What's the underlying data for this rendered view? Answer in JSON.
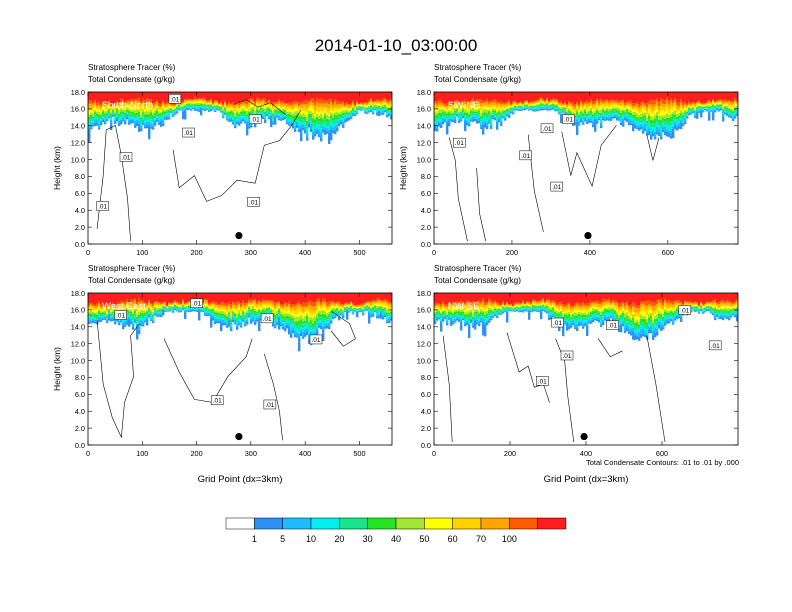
{
  "figure": {
    "title": "2014-01-10_03:00:00",
    "contour_note": "Total Condensate Contours: .01 to .01 by .000"
  },
  "colorbar": {
    "colors": [
      "#ffffff",
      "#2e8ff5",
      "#1ebcff",
      "#00f0f0",
      "#19e68c",
      "#24e424",
      "#a0e632",
      "#ffff00",
      "#ffd200",
      "#ffa500",
      "#ff5a00",
      "#ff1e1e"
    ],
    "labels": [
      "1",
      "5",
      "10",
      "20",
      "30",
      "40",
      "50",
      "60",
      "70",
      "100"
    ]
  },
  "chart_data": [
    {
      "type": "heatmap",
      "panel_label": "South-North",
      "header_line1": "Stratosphere Tracer   (%)",
      "header_line2": "Total Condensate   (g/kg)",
      "ylabel": "Height (km)",
      "xlabel": "",
      "xlim": [
        0,
        560
      ],
      "ylim": [
        0,
        18
      ],
      "x_ticks": [
        "0",
        "100",
        "200",
        "300",
        "400",
        "500"
      ],
      "y_ticks": [
        "0.0",
        "2.0",
        "4.0",
        "6.0",
        "8.0",
        "10.0",
        "12.0",
        "14.0",
        "16.0",
        "18.0"
      ],
      "contour_labels": [
        {
          "x": 160,
          "y": 17.2,
          "text": ".01"
        },
        {
          "x": 308,
          "y": 14.8,
          "text": ".01"
        },
        {
          "x": 185,
          "y": 13.2,
          "text": ".01"
        },
        {
          "x": 70,
          "y": 10.3,
          "text": ".01"
        },
        {
          "x": 27,
          "y": 4.5,
          "text": ".01"
        },
        {
          "x": 305,
          "y": 5.0,
          "text": ".01"
        }
      ],
      "marker": {
        "x": 278,
        "y": 1.0
      }
    },
    {
      "type": "heatmap",
      "panel_label": "SW-NE",
      "header_line1": "Stratosphere Tracer   (%)",
      "header_line2": "Total Condensate   (g/kg)",
      "ylabel": "Height (km)",
      "xlabel": "",
      "xlim": [
        0,
        780
      ],
      "ylim": [
        0,
        18
      ],
      "x_ticks": [
        "0",
        "200",
        "400",
        "600"
      ],
      "y_ticks": [
        "0.0",
        "2.0",
        "4.0",
        "6.0",
        "8.0",
        "10.0",
        "12.0",
        "14.0",
        "16.0",
        "18.0"
      ],
      "contour_labels": [
        {
          "x": 65,
          "y": 12.0,
          "text": ".01"
        },
        {
          "x": 345,
          "y": 14.8,
          "text": ".01"
        },
        {
          "x": 290,
          "y": 13.7,
          "text": ".01"
        },
        {
          "x": 235,
          "y": 10.5,
          "text": ".01"
        },
        {
          "x": 315,
          "y": 6.8,
          "text": ".01"
        }
      ],
      "marker": {
        "x": 395,
        "y": 1.0
      }
    },
    {
      "type": "heatmap",
      "panel_label": "West-East",
      "header_line1": "Stratosphere Tracer   (%)",
      "header_line2": "Total Condensate   (g/kg)",
      "ylabel": "Height (km)",
      "xlabel": "Grid Point (dx=3km)",
      "xlim": [
        0,
        560
      ],
      "ylim": [
        0,
        18
      ],
      "x_ticks": [
        "0",
        "100",
        "200",
        "300",
        "400",
        "500"
      ],
      "y_ticks": [
        "0.0",
        "2.0",
        "4.0",
        "6.0",
        "8.0",
        "10.0",
        "12.0",
        "14.0",
        "16.0",
        "18.0"
      ],
      "contour_labels": [
        {
          "x": 200,
          "y": 16.8,
          "text": ".01"
        },
        {
          "x": 60,
          "y": 15.4,
          "text": ".01"
        },
        {
          "x": 330,
          "y": 15.0,
          "text": ".01"
        },
        {
          "x": 420,
          "y": 12.5,
          "text": ".01"
        },
        {
          "x": 238,
          "y": 5.3,
          "text": ".01"
        },
        {
          "x": 335,
          "y": 4.8,
          "text": ".01"
        }
      ],
      "marker": {
        "x": 278,
        "y": 1.0
      }
    },
    {
      "type": "heatmap",
      "panel_label": "NW-SE",
      "header_line1": "Stratosphere Tracer   (%)",
      "header_line2": "Total Condensate   (g/kg)",
      "ylabel": "",
      "xlabel": "Grid Point (dx=3km)",
      "xlim": [
        0,
        800
      ],
      "ylim": [
        0,
        18
      ],
      "x_ticks": [
        "0",
        "200",
        "400",
        "600"
      ],
      "y_ticks": [
        "0.0",
        "2.0",
        "4.0",
        "6.0",
        "8.0",
        "10.0",
        "12.0",
        "14.0",
        "16.0",
        "18.0"
      ],
      "contour_labels": [
        {
          "x": 660,
          "y": 16.0,
          "text": ".01"
        },
        {
          "x": 325,
          "y": 14.5,
          "text": ".01"
        },
        {
          "x": 470,
          "y": 14.2,
          "text": ".01"
        },
        {
          "x": 350,
          "y": 10.6,
          "text": ".01"
        },
        {
          "x": 285,
          "y": 7.6,
          "text": ".01"
        },
        {
          "x": 740,
          "y": 11.8,
          "text": ".01"
        }
      ],
      "marker": {
        "x": 395,
        "y": 1.0
      }
    }
  ]
}
